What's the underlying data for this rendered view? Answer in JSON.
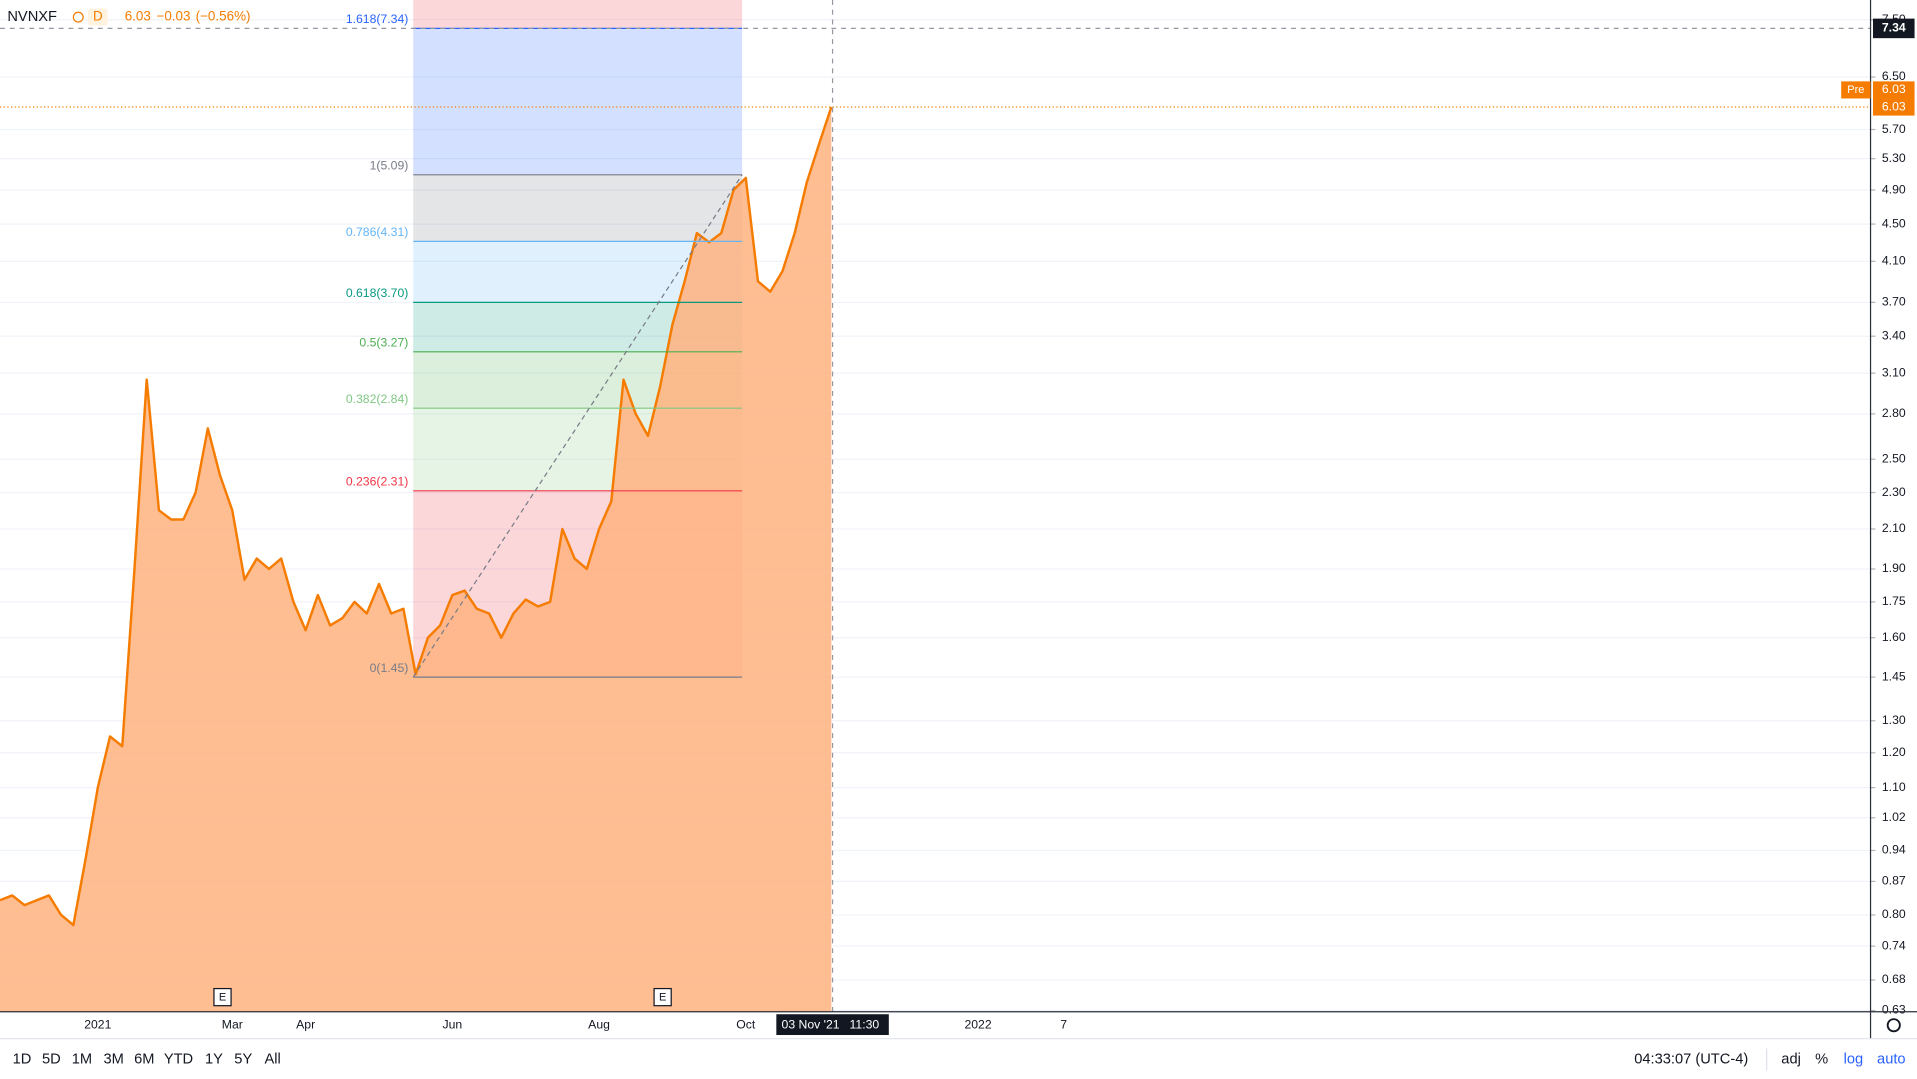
{
  "chart_data": {
    "type": "area",
    "header": {
      "symbol": "NVNXF",
      "interval": "D",
      "price": 6.03,
      "change": "−0.03",
      "change_pct": "(−0.56%)"
    },
    "log_scale": true,
    "grid": true,
    "color": "#f57c00",
    "fill_color": "#ffb27f",
    "categories": [
      null,
      null,
      null,
      null,
      null,
      null,
      null,
      null,
      "2021",
      null,
      null,
      null,
      null,
      null,
      null,
      null,
      null,
      null,
      null,
      "Mar",
      null,
      null,
      null,
      null,
      null,
      "Apr",
      null,
      null,
      null,
      null,
      null,
      null,
      null,
      null,
      null,
      null,
      null,
      "Jun",
      null,
      null,
      null,
      null,
      null,
      null,
      null,
      null,
      null,
      null,
      null,
      "Aug",
      null,
      null,
      null,
      null,
      null,
      null,
      null,
      null,
      null,
      null,
      null,
      "Oct",
      null,
      null,
      null,
      null,
      null,
      null,
      null,
      null,
      null,
      null,
      null,
      null,
      null,
      null,
      null,
      null,
      null,
      null,
      "2022",
      null,
      null,
      null,
      null,
      null,
      null,
      "7",
      null,
      null,
      null,
      null,
      null,
      null,
      null,
      null,
      null,
      null,
      null,
      null,
      null,
      null,
      null,
      null,
      null,
      null,
      null,
      null,
      null,
      null,
      null,
      null,
      null,
      null,
      null,
      null,
      null,
      null,
      null,
      null,
      null,
      null,
      null,
      null,
      null,
      null,
      null,
      null,
      null,
      null,
      null,
      null,
      null,
      null,
      null,
      null,
      null,
      null,
      null,
      null,
      null,
      null,
      null,
      null,
      null,
      null,
      null,
      null,
      null,
      null,
      null,
      null,
      null
    ],
    "values": [
      0.83,
      0.84,
      0.82,
      0.83,
      0.84,
      0.8,
      0.78,
      0.92,
      1.1,
      1.25,
      1.22,
      1.9,
      3.05,
      2.2,
      2.15,
      2.15,
      2.3,
      2.7,
      2.4,
      2.2,
      1.85,
      1.95,
      1.9,
      1.95,
      1.75,
      1.63,
      1.78,
      1.65,
      1.68,
      1.75,
      1.7,
      1.83,
      1.7,
      1.72,
      1.46,
      1.6,
      1.65,
      1.78,
      1.8,
      1.72,
      1.7,
      1.6,
      1.7,
      1.76,
      1.73,
      1.75,
      2.1,
      1.95,
      1.9,
      2.1,
      2.25,
      3.05,
      2.8,
      2.65,
      3.0,
      3.5,
      3.9,
      4.4,
      4.3,
      4.4,
      4.9,
      5.05,
      3.9,
      3.8,
      4.0,
      4.4,
      5.0,
      5.5,
      6.03,
      null,
      null,
      null,
      null,
      null,
      null,
      null,
      null,
      null,
      null,
      null,
      null,
      null,
      null,
      null,
      null,
      null,
      null,
      null,
      null,
      null,
      null,
      null,
      null,
      null,
      null,
      null,
      null,
      null,
      null,
      null,
      null,
      null,
      null,
      null,
      null,
      null,
      null,
      null,
      null,
      null,
      null,
      null,
      null,
      null,
      null,
      null,
      null,
      null,
      null,
      null,
      null,
      null,
      null,
      null,
      null,
      null,
      null,
      null,
      null,
      null,
      null,
      null,
      null,
      null,
      null,
      null,
      null,
      null,
      null,
      null,
      null,
      null,
      null,
      null,
      null,
      null,
      null,
      null,
      null,
      null,
      null,
      null,
      null
    ],
    "ylim": [
      0.628,
      7.88
    ],
    "yticks": [
      0.63,
      0.68,
      0.74,
      {
        "value": 0.8,
        "label": "0.80"
      },
      0.87,
      0.94,
      1.02,
      {
        "value": 1.1,
        "label": "1.10"
      },
      {
        "value": 1.2,
        "label": "1.20"
      },
      {
        "value": 1.3,
        "label": "1.30"
      },
      1.45,
      {
        "value": 1.6,
        "label": "1.60"
      },
      1.75,
      {
        "value": 1.9,
        "label": "1.90"
      },
      {
        "value": 2.1,
        "label": "2.10"
      },
      {
        "value": 2.3,
        "label": "2.30"
      },
      {
        "value": 2.5,
        "label": "2.50"
      },
      {
        "value": 2.8,
        "label": "2.80"
      },
      {
        "value": 3.1,
        "label": "3.10"
      },
      {
        "value": 3.4,
        "label": "3.40"
      },
      {
        "value": 3.7,
        "label": "3.70"
      },
      {
        "value": 4.1,
        "label": "4.10"
      },
      {
        "value": 4.5,
        "label": "4.50"
      },
      {
        "value": 4.9,
        "label": "4.90"
      },
      {
        "value": 5.3,
        "label": "5.30"
      },
      {
        "value": 5.7,
        "label": "5.70"
      },
      {
        "value": 6.5,
        "label": "6.50"
      },
      {
        "value": 7.5,
        "label": "7.50"
      }
    ],
    "fib_levels": [
      {
        "label": "1.618(7.34)",
        "value": 7.34,
        "color": "#2962ff"
      },
      {
        "label": "1(5.09)",
        "value": 5.09,
        "color": "#787b86"
      },
      {
        "label": "0.786(4.31)",
        "value": 4.31,
        "color": "#64b5f6"
      },
      {
        "label": "0.618(3.70)",
        "value": 3.7,
        "color": "#089981"
      },
      {
        "label": "0.5(3.27)",
        "value": 3.27,
        "color": "#4caf50"
      },
      {
        "label": "0.382(2.84)",
        "value": 2.84,
        "color": "#81c784"
      },
      {
        "label": "0.236(2.31)",
        "value": 2.31,
        "color": "#f23645"
      },
      {
        "label": "0(1.45)",
        "value": 1.45,
        "color": "#787b86"
      }
    ],
    "earnings_markers": [
      "E",
      "E"
    ],
    "price_tag": {
      "pre": "Pre",
      "pre_price": 6.03,
      "last": 6.03
    },
    "crosshair": {
      "date": "03 Nov '21",
      "time": "11:30",
      "price": 7.34
    },
    "toolbar": {
      "ranges": [
        "1D",
        "5D",
        "1M",
        "3M",
        "6M",
        "YTD",
        "1Y",
        "5Y",
        "All"
      ],
      "clock": "04:33:07 (UTC-4)",
      "options": [
        "adj",
        "%",
        "log",
        "auto"
      ]
    }
  }
}
